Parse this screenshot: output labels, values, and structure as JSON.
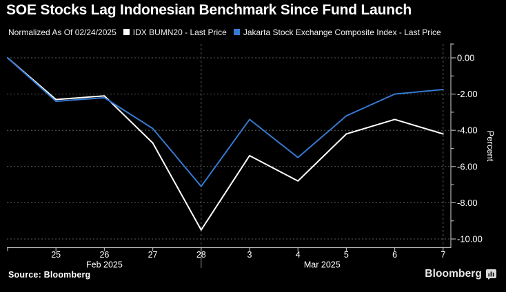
{
  "title": "SOE Stocks Lag Indonesian Benchmark Since Fund Launch",
  "legend": {
    "note": "Normalized As Of 02/24/2025",
    "items": [
      {
        "label": "IDX BUMN20 - Last Price",
        "color": "#ffffff"
      },
      {
        "label": "Jakarta Stock Exchange Composite Index - Last Price",
        "color": "#3579d2"
      }
    ]
  },
  "chart_data": {
    "type": "line",
    "x": [
      "Feb 24",
      "Feb 25",
      "Feb 26",
      "Feb 27",
      "Feb 28",
      "Mar 3",
      "Mar 4",
      "Mar 5",
      "Mar 6",
      "Mar 7"
    ],
    "x_tick_labels": [
      "",
      "25",
      "26",
      "27",
      "28",
      "3",
      "4",
      "5",
      "6",
      "7"
    ],
    "month_labels": [
      {
        "label": "Feb 2025",
        "anchor_index": 2
      },
      {
        "label": "Mar 2025",
        "anchor_x_between": [
          6,
          7
        ]
      }
    ],
    "series": [
      {
        "name": "IDX BUMN20 - Last Price",
        "color": "#ffffff",
        "values": [
          0.0,
          -2.3,
          -2.1,
          -4.7,
          -9.5,
          -5.4,
          -6.8,
          -4.2,
          -3.4,
          -4.2
        ]
      },
      {
        "name": "Jakarta Stock Exchange Composite Index - Last Price",
        "color": "#3579d2",
        "values": [
          0.0,
          -2.4,
          -2.2,
          -3.9,
          -7.1,
          -3.4,
          -5.5,
          -3.2,
          -2.0,
          -1.75
        ]
      }
    ],
    "ylabel": "Percent",
    "y_ticks": [
      0,
      -2,
      -4,
      -6,
      -8,
      -10
    ],
    "y_tick_labels": [
      "0.00",
      "-2.00",
      "-4.00",
      "-6.00",
      "-8.00",
      "-10.00"
    ],
    "y_minor_ticks": [
      -1,
      -3,
      -5,
      -7,
      -9
    ],
    "ylim": [
      0.78,
      -10.5
    ],
    "grid": "horizontal dotted",
    "legend_position": "top",
    "vertical_guide_indices": [
      4,
      9
    ],
    "axis_color": "#b3b3b3",
    "grid_color": "#5c5c5c",
    "tick_label_color": "#ffffff"
  },
  "footer": {
    "source": "Source: Bloomberg",
    "brand": "Bloomberg",
    "brand_icon": "bloomberg-terminal-icon"
  }
}
